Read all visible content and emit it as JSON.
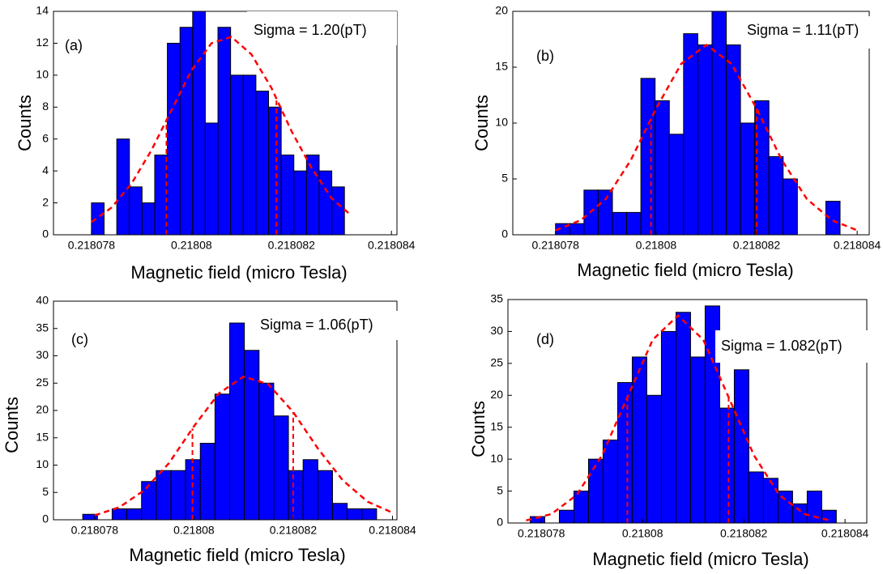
{
  "chart_data": [
    {
      "type": "histogram",
      "panel_label": "(a)",
      "annotation": "Sigma = 1.20(pT)",
      "x_label": "Magnetic field (micro Tesla)",
      "y_label": "Counts",
      "color": "#0000ff",
      "bins": [
        0.218078,
        0.218078253,
        0.218078506,
        0.218078759,
        0.218079012,
        0.218079265,
        0.218079518,
        0.218079771,
        0.218080024,
        0.218080277,
        0.21808053,
        0.218080783,
        0.218081036,
        0.218081289,
        0.218081542,
        0.218081795,
        0.218082048,
        0.218082301,
        0.218082554,
        0.218082807,
        0.21808306
      ],
      "counts": [
        2,
        0,
        6,
        3,
        2,
        5,
        12,
        13,
        14,
        7,
        13,
        10,
        10,
        9,
        8,
        5,
        4,
        5,
        4,
        3
      ],
      "fit": {
        "color": "#ff0000",
        "x": [
          0.218078,
          0.2180784,
          0.2180788,
          0.2180792,
          0.2180796,
          0.21808,
          0.2180804,
          0.2180808,
          0.2180812,
          0.2180816,
          0.218082,
          0.2180824,
          0.2180828,
          0.2180832
        ],
        "values": [
          0.8,
          1.7,
          3.2,
          5.3,
          7.8,
          10.3,
          12.0,
          12.4,
          11.3,
          9.2,
          6.5,
          4.2,
          2.3,
          1.2
        ]
      },
      "vlines": [
        0.2180795,
        0.2180817
      ],
      "xlim": [
        0.21807724,
        0.21808411
      ],
      "ylim": [
        0,
        14
      ],
      "xticks": [
        0.218078,
        0.21808,
        0.218082,
        0.218084
      ],
      "yticks": [
        0,
        2,
        4,
        6,
        8,
        10,
        12,
        14
      ]
    },
    {
      "type": "histogram",
      "panel_label": "(b)",
      "annotation": "Sigma = 1.11(pT)",
      "x_label": "Magnetic field (micro Tesla)",
      "y_label": "Counts",
      "color": "#0000ff",
      "bins": [
        0.218078,
        0.218078283,
        0.218078566,
        0.218078849,
        0.218079132,
        0.218079415,
        0.218079698,
        0.218079981,
        0.218080264,
        0.218080547,
        0.21808083,
        0.218081113,
        0.218081396,
        0.218081679,
        0.218081962,
        0.218082245,
        0.218082528,
        0.218082811,
        0.218083094,
        0.218083377,
        0.21808366
      ],
      "counts": [
        1,
        1,
        4,
        4,
        2,
        2,
        14,
        12,
        9,
        18,
        17,
        20,
        17,
        10,
        12,
        7,
        5,
        0,
        0,
        3
      ],
      "fit": {
        "color": "#ff0000",
        "x": [
          0.218078,
          0.2180785,
          0.218079,
          0.2180795,
          0.21808,
          0.2180805,
          0.218081,
          0.2180815,
          0.218082,
          0.2180825,
          0.218083,
          0.2180835,
          0.218084
        ],
        "values": [
          0.4,
          1.3,
          3.2,
          6.7,
          11.3,
          15.3,
          17,
          15.3,
          11.3,
          6.7,
          3.2,
          1.3,
          0.4
        ]
      },
      "vlines": [
        0.2180799,
        0.218082
      ],
      "xlim": [
        0.21807715,
        0.21808424
      ],
      "ylim": [
        0,
        20
      ],
      "xticks": [
        0.218078,
        0.21808,
        0.218082,
        0.218084
      ],
      "yticks": [
        0,
        5,
        10,
        15,
        20
      ]
    },
    {
      "type": "histogram",
      "panel_label": "(c)",
      "annotation": "Sigma = 1.06(pT)",
      "x_label": "Magnetic field (micro Tesla)",
      "y_label": "Counts",
      "color": "#0000ff",
      "bins": [
        0.21807776,
        0.218078056,
        0.218078352,
        0.218078648,
        0.218078944,
        0.21807924,
        0.218079536,
        0.218079832,
        0.218080128,
        0.218080424,
        0.21808072,
        0.218081016,
        0.218081312,
        0.218081608,
        0.218081904,
        0.2180822,
        0.218082496,
        0.218082792,
        0.218083088,
        0.218083384,
        0.21808368
      ],
      "counts": [
        1,
        0,
        2,
        2,
        7,
        9,
        9,
        11,
        14,
        23,
        36,
        31,
        25,
        19,
        9,
        11,
        9,
        3,
        2,
        2
      ],
      "fit": {
        "color": "#ff0000",
        "x": [
          0.218078,
          0.2180785,
          0.218079,
          0.2180795,
          0.21808,
          0.2180805,
          0.218081,
          0.2180815,
          0.218082,
          0.2180825,
          0.218083,
          0.2180835,
          0.218084
        ],
        "values": [
          0.8,
          2.3,
          5.4,
          10.4,
          17.1,
          23.1,
          26.2,
          24.8,
          19.7,
          13.0,
          7.2,
          3.3,
          1.3
        ]
      },
      "vlines": [
        0.21807997,
        0.218082
      ],
      "xlim": [
        0.21807717,
        0.21808409
      ],
      "ylim": [
        0,
        40
      ],
      "xticks": [
        0.218078,
        0.21808,
        0.218082,
        0.218084
      ],
      "yticks": [
        0,
        5,
        10,
        15,
        20,
        25,
        30,
        35,
        40
      ]
    },
    {
      "type": "histogram",
      "panel_label": "(d)",
      "annotation": "Sigma = 1.082(pT)",
      "x_label": "Magnetic field (micro Tesla)",
      "y_label": "Counts",
      "color": "#0000ff",
      "bins": [
        0.21807778,
        0.218078068,
        0.218078356,
        0.218078644,
        0.218078932,
        0.21807922,
        0.218079508,
        0.218079796,
        0.218080084,
        0.218080372,
        0.21808066,
        0.218080948,
        0.218081236,
        0.218081524,
        0.218081812,
        0.2180821,
        0.218082388,
        0.218082676,
        0.218082964,
        0.218083252,
        0.21808354,
        0.218083828
      ],
      "counts": [
        1,
        0,
        2,
        5,
        10,
        13,
        22,
        26,
        20,
        30,
        33,
        26,
        34,
        18,
        24,
        8,
        7,
        5,
        3,
        5,
        2
      ],
      "fit": {
        "color": "#ff0000",
        "x": [
          0.2180777,
          0.2180782,
          0.2180787,
          0.2180792,
          0.2180797,
          0.2180802,
          0.2180807,
          0.2180812,
          0.2180817,
          0.2180822,
          0.2180827,
          0.2180832,
          0.2180837
        ],
        "values": [
          0.4,
          1.4,
          4.4,
          10.6,
          19.7,
          28.7,
          32.5,
          28.7,
          19.7,
          10.6,
          4.4,
          1.4,
          0.4
        ]
      },
      "vlines": [
        0.2180797,
        0.2180817
      ],
      "xlim": [
        0.21807734,
        0.21808443
      ],
      "ylim": [
        0,
        35
      ],
      "xticks": [
        0.218078,
        0.21808,
        0.218082,
        0.218084
      ],
      "yticks": [
        0,
        5,
        10,
        15,
        20,
        25,
        30,
        35
      ]
    }
  ]
}
